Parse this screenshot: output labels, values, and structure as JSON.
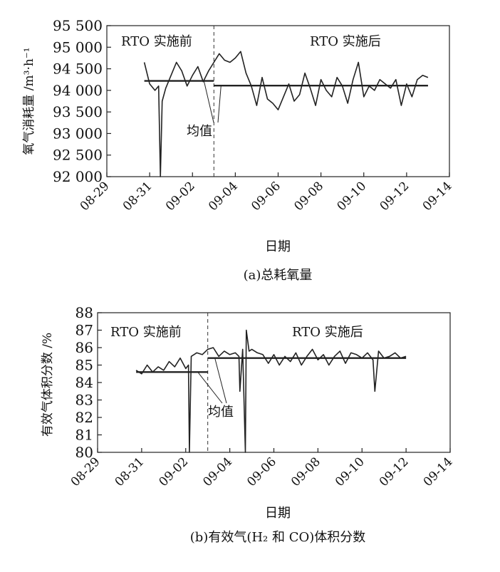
{
  "chart_data": [
    {
      "type": "line",
      "caption": "(a)总耗氧量",
      "xlabel": "日期",
      "ylabel": "氧气消耗量 /m³·h⁻¹",
      "x_ticks": [
        "08-29",
        "08-31",
        "09-02",
        "09-04",
        "09-06",
        "09-08",
        "09-10",
        "09-12",
        "09-14"
      ],
      "y_ticks": [
        "92 000",
        "92 500",
        "93 000",
        "93 500",
        "94 000",
        "94 500",
        "95 000",
        "95 500"
      ],
      "xlim": [
        "08-29",
        "09-14"
      ],
      "ylim": [
        92000,
        95500
      ],
      "divider_date": "09-03",
      "label_before": "RTO 实施前",
      "label_after": "RTO 实施后",
      "mean_label": "均值",
      "mean_before": 94220,
      "mean_after": 94110,
      "series": [
        {
          "x": [
            "08-30T18:00",
            "08-31T00:00",
            "08-31T06:00",
            "08-31T10:00",
            "08-31T12:00",
            "08-31T14:00",
            "08-31T18:00",
            "09-01T00:00",
            "09-01T06:00",
            "09-01T12:00",
            "09-01T18:00",
            "09-02T00:00",
            "09-02T06:00",
            "09-02T12:00",
            "09-02T18:00",
            "09-03T00:00",
            "09-03T06:00",
            "09-03T12:00",
            "09-03T18:00",
            "09-04T00:00",
            "09-04T06:00",
            "09-04T12:00",
            "09-04T18:00",
            "09-05T00:00",
            "09-05T06:00",
            "09-05T12:00",
            "09-05T18:00",
            "09-06T00:00",
            "09-06T06:00",
            "09-06T12:00",
            "09-06T18:00",
            "09-07T00:00",
            "09-07T06:00",
            "09-07T12:00",
            "09-07T18:00",
            "09-08T00:00",
            "09-08T06:00",
            "09-08T12:00",
            "09-08T18:00",
            "09-09T00:00",
            "09-09T06:00",
            "09-09T12:00",
            "09-09T18:00",
            "09-10T00:00",
            "09-10T06:00",
            "09-10T12:00",
            "09-10T18:00",
            "09-11T00:00",
            "09-11T06:00",
            "09-11T12:00",
            "09-11T18:00",
            "09-12T00:00",
            "09-12T06:00",
            "09-12T12:00",
            "09-12T18:00",
            "09-13T00:00"
          ],
          "y": [
            94650,
            94150,
            94000,
            94100,
            92000,
            93750,
            94050,
            94350,
            94650,
            94450,
            94100,
            94350,
            94550,
            94200,
            94450,
            94650,
            94850,
            94700,
            94650,
            94750,
            94900,
            94400,
            94100,
            93650,
            94300,
            93800,
            93700,
            93550,
            93850,
            94150,
            93750,
            93900,
            94400,
            94050,
            93650,
            94250,
            94000,
            93850,
            94300,
            94100,
            93700,
            94250,
            94650,
            93850,
            94100,
            94000,
            94250,
            94150,
            94050,
            94250,
            93650,
            94150,
            93850,
            94250,
            94350,
            94300
          ]
        }
      ]
    },
    {
      "type": "line",
      "caption": "(b)有效气(H₂ 和 CO)体积分数",
      "xlabel": "日期",
      "ylabel": "有效气体积分数 /%",
      "x_ticks": [
        "08-29",
        "08-31",
        "09-02",
        "09-04",
        "09-06",
        "09-08",
        "09-10",
        "09-12",
        "09-14"
      ],
      "y_ticks": [
        "80",
        "81",
        "82",
        "83",
        "84",
        "85",
        "86",
        "87",
        "88"
      ],
      "xlim": [
        "08-29",
        "09-14"
      ],
      "ylim": [
        80,
        88
      ],
      "divider_date": "09-03",
      "label_before": "RTO 实施前",
      "label_after": "RTO 实施后",
      "mean_label": "均值",
      "mean_before": 84.6,
      "mean_after": 85.4,
      "series": [
        {
          "x": [
            "08-30T18:00",
            "08-31T00:00",
            "08-31T06:00",
            "08-31T12:00",
            "08-31T18:00",
            "09-01T00:00",
            "09-01T06:00",
            "09-01T12:00",
            "09-01T18:00",
            "09-02T00:00",
            "09-02T03:00",
            "09-02T04:00",
            "09-02T06:00",
            "09-02T12:00",
            "09-02T18:00",
            "09-03T00:00",
            "09-03T06:00",
            "09-03T12:00",
            "09-03T18:00",
            "09-04T00:00",
            "09-04T06:00",
            "09-04T10:00",
            "09-04T11:00",
            "09-04T14:00",
            "09-04T17:00",
            "09-04T18:00",
            "09-04T21:00",
            "09-05T00:00",
            "09-05T06:00",
            "09-05T12:00",
            "09-05T18:00",
            "09-06T00:00",
            "09-06T06:00",
            "09-06T12:00",
            "09-06T18:00",
            "09-07T00:00",
            "09-07T06:00",
            "09-07T12:00",
            "09-07T18:00",
            "09-08T00:00",
            "09-08T06:00",
            "09-08T12:00",
            "09-08T18:00",
            "09-09T00:00",
            "09-09T06:00",
            "09-09T12:00",
            "09-09T18:00",
            "09-10T00:00",
            "09-10T06:00",
            "09-10T12:00",
            "09-10T14:00",
            "09-10T18:00",
            "09-11T00:00",
            "09-11T06:00",
            "09-11T12:00",
            "09-11T18:00",
            "09-12T00:00"
          ],
          "y": [
            84.7,
            84.5,
            85.0,
            84.6,
            84.9,
            84.7,
            85.2,
            84.9,
            85.4,
            84.8,
            85.0,
            80.0,
            85.5,
            85.7,
            85.6,
            85.9,
            86.0,
            85.5,
            85.8,
            85.6,
            85.7,
            85.5,
            83.5,
            85.9,
            80.0,
            87.0,
            85.8,
            85.9,
            85.7,
            85.6,
            85.1,
            85.6,
            85.0,
            85.5,
            85.2,
            85.7,
            85.0,
            85.5,
            85.9,
            85.3,
            85.6,
            85.0,
            85.5,
            85.8,
            85.1,
            85.7,
            85.6,
            85.4,
            85.7,
            85.3,
            83.5,
            85.8,
            85.4,
            85.5,
            85.7,
            85.4,
            85.5
          ]
        }
      ]
    }
  ]
}
